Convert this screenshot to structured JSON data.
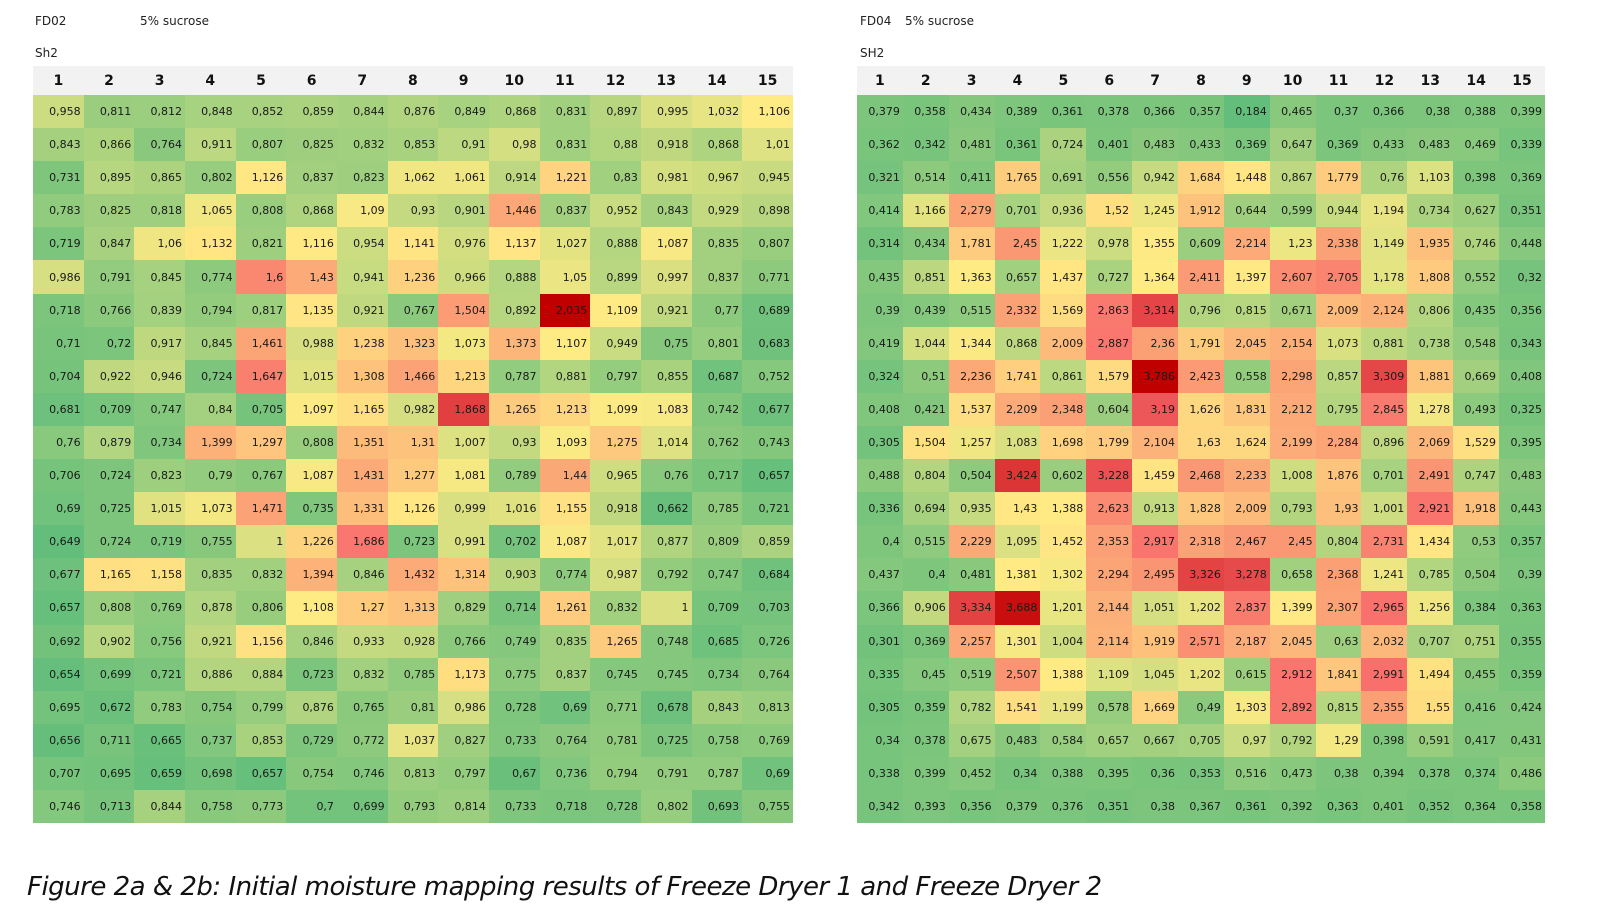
{
  "caption": "Figure 2a & 2b: Initial moisture mapping results of Freeze Dryer 1 and Freeze Dryer 2",
  "colors": {
    "low": "#63be7b",
    "mid": "#ffeb84",
    "high": "#f8696b",
    "peak": "#c00000"
  },
  "chart_data": [
    {
      "type": "heatmap",
      "label": "FD02",
      "formulation": "5% sucrose",
      "shelf": "Sh2",
      "columns": [
        "1",
        "2",
        "3",
        "4",
        "5",
        "6",
        "7",
        "8",
        "9",
        "10",
        "11",
        "12",
        "13",
        "14",
        "15"
      ],
      "color_range": [
        0.649,
        2.035
      ],
      "values": [
        [
          "0,958",
          "0,811",
          "0,812",
          "0,848",
          "0,852",
          "0,859",
          "0,844",
          "0,876",
          "0,849",
          "0,868",
          "0,831",
          "0,897",
          "0,995",
          "1,032",
          "1,106"
        ],
        [
          "0,843",
          "0,866",
          "0,764",
          "0,911",
          "0,807",
          "0,825",
          "0,832",
          "0,853",
          "0,91",
          "0,98",
          "0,831",
          "0,88",
          "0,918",
          "0,868",
          "1,01"
        ],
        [
          "0,731",
          "0,895",
          "0,865",
          "0,802",
          "1,126",
          "0,837",
          "0,823",
          "1,062",
          "1,061",
          "0,914",
          "1,221",
          "0,83",
          "0,981",
          "0,967",
          "0,945"
        ],
        [
          "0,783",
          "0,825",
          "0,818",
          "1,065",
          "0,808",
          "0,868",
          "1,09",
          "0,93",
          "0,901",
          "1,446",
          "0,837",
          "0,952",
          "0,843",
          "0,929",
          "0,898"
        ],
        [
          "0,719",
          "0,847",
          "1,06",
          "1,132",
          "0,821",
          "1,116",
          "0,954",
          "1,141",
          "0,976",
          "1,137",
          "1,027",
          "0,888",
          "1,087",
          "0,835",
          "0,807"
        ],
        [
          "0,986",
          "0,791",
          "0,845",
          "0,774",
          "1,6",
          "1,43",
          "0,941",
          "1,236",
          "0,966",
          "0,888",
          "1,05",
          "0,899",
          "0,997",
          "0,837",
          "0,771"
        ],
        [
          "0,718",
          "0,766",
          "0,839",
          "0,794",
          "0,817",
          "1,135",
          "0,921",
          "0,767",
          "1,504",
          "0,892",
          "2,035",
          "1,109",
          "0,921",
          "0,77",
          "0,689"
        ],
        [
          "0,71",
          "0,72",
          "0,917",
          "0,845",
          "1,461",
          "0,988",
          "1,238",
          "1,323",
          "1,073",
          "1,373",
          "1,107",
          "0,949",
          "0,75",
          "0,801",
          "0,683"
        ],
        [
          "0,704",
          "0,922",
          "0,946",
          "0,724",
          "1,647",
          "1,015",
          "1,308",
          "1,466",
          "1,213",
          "0,787",
          "0,881",
          "0,797",
          "0,855",
          "0,687",
          "0,752"
        ],
        [
          "0,681",
          "0,709",
          "0,747",
          "0,84",
          "0,705",
          "1,097",
          "1,165",
          "0,982",
          "1,868",
          "1,265",
          "1,213",
          "1,099",
          "1,083",
          "0,742",
          "0,677"
        ],
        [
          "0,76",
          "0,879",
          "0,734",
          "1,399",
          "1,297",
          "0,808",
          "1,351",
          "1,31",
          "1,007",
          "0,93",
          "1,093",
          "1,275",
          "1,014",
          "0,762",
          "0,743"
        ],
        [
          "0,706",
          "0,724",
          "0,823",
          "0,79",
          "0,767",
          "1,087",
          "1,431",
          "1,277",
          "1,081",
          "0,789",
          "1,44",
          "0,965",
          "0,76",
          "0,717",
          "0,657"
        ],
        [
          "0,69",
          "0,725",
          "1,015",
          "1,073",
          "1,471",
          "0,735",
          "1,331",
          "1,126",
          "0,999",
          "1,016",
          "1,155",
          "0,918",
          "0,662",
          "0,785",
          "0,721"
        ],
        [
          "0,649",
          "0,724",
          "0,719",
          "0,755",
          "1",
          "1,226",
          "1,686",
          "0,723",
          "0,991",
          "0,702",
          "1,087",
          "1,017",
          "0,877",
          "0,809",
          "0,859"
        ],
        [
          "0,677",
          "1,165",
          "1,158",
          "0,835",
          "0,832",
          "1,394",
          "0,846",
          "1,432",
          "1,314",
          "0,903",
          "0,774",
          "0,987",
          "0,792",
          "0,747",
          "0,684"
        ],
        [
          "0,657",
          "0,808",
          "0,769",
          "0,878",
          "0,806",
          "1,108",
          "1,27",
          "1,313",
          "0,829",
          "0,714",
          "1,261",
          "0,832",
          "1",
          "0,709",
          "0,703"
        ],
        [
          "0,692",
          "0,902",
          "0,756",
          "0,921",
          "1,156",
          "0,846",
          "0,933",
          "0,928",
          "0,766",
          "0,749",
          "0,835",
          "1,265",
          "0,748",
          "0,685",
          "0,726"
        ],
        [
          "0,654",
          "0,699",
          "0,721",
          "0,886",
          "0,884",
          "0,723",
          "0,832",
          "0,785",
          "1,173",
          "0,775",
          "0,837",
          "0,745",
          "0,745",
          "0,734",
          "0,764"
        ],
        [
          "0,695",
          "0,672",
          "0,783",
          "0,754",
          "0,799",
          "0,876",
          "0,765",
          "0,81",
          "0,986",
          "0,728",
          "0,69",
          "0,771",
          "0,678",
          "0,843",
          "0,813"
        ],
        [
          "0,656",
          "0,711",
          "0,665",
          "0,737",
          "0,853",
          "0,729",
          "0,772",
          "1,037",
          "0,827",
          "0,733",
          "0,764",
          "0,781",
          "0,725",
          "0,758",
          "0,769"
        ],
        [
          "0,707",
          "0,695",
          "0,659",
          "0,698",
          "0,657",
          "0,754",
          "0,746",
          "0,813",
          "0,797",
          "0,67",
          "0,736",
          "0,794",
          "0,791",
          "0,787",
          "0,69"
        ],
        [
          "0,746",
          "0,713",
          "0,844",
          "0,758",
          "0,773",
          "0,7",
          "0,699",
          "0,793",
          "0,814",
          "0,733",
          "0,718",
          "0,728",
          "0,802",
          "0,693",
          "0,755"
        ]
      ]
    },
    {
      "type": "heatmap",
      "label": "FD04",
      "formulation": "5% sucrose",
      "shelf": "SH2",
      "columns": [
        "1",
        "2",
        "3",
        "4",
        "5",
        "6",
        "7",
        "8",
        "9",
        "10",
        "11",
        "12",
        "13",
        "14",
        "15"
      ],
      "color_range": [
        0.184,
        3.786
      ],
      "values": [
        [
          "0,379",
          "0,358",
          "0,434",
          "0,389",
          "0,361",
          "0,378",
          "0,366",
          "0,357",
          "0,184",
          "0,465",
          "0,37",
          "0,366",
          "0,38",
          "0,388",
          "0,399"
        ],
        [
          "0,362",
          "0,342",
          "0,481",
          "0,361",
          "0,724",
          "0,401",
          "0,483",
          "0,433",
          "0,369",
          "0,647",
          "0,369",
          "0,433",
          "0,483",
          "0,469",
          "0,339"
        ],
        [
          "0,321",
          "0,514",
          "0,411",
          "1,765",
          "0,691",
          "0,556",
          "0,942",
          "1,684",
          "1,448",
          "0,867",
          "1,779",
          "0,76",
          "1,103",
          "0,398",
          "0,369"
        ],
        [
          "0,414",
          "1,166",
          "2,279",
          "0,701",
          "0,936",
          "1,52",
          "1,245",
          "1,912",
          "0,644",
          "0,599",
          "0,944",
          "1,194",
          "0,734",
          "0,627",
          "0,351"
        ],
        [
          "0,314",
          "0,434",
          "1,781",
          "2,45",
          "1,222",
          "0,978",
          "1,355",
          "0,609",
          "2,214",
          "1,23",
          "2,338",
          "1,149",
          "1,935",
          "0,746",
          "0,448"
        ],
        [
          "0,435",
          "0,851",
          "1,363",
          "0,657",
          "1,437",
          "0,727",
          "1,364",
          "2,411",
          "1,397",
          "2,607",
          "2,705",
          "1,178",
          "1,808",
          "0,552",
          "0,32"
        ],
        [
          "0,39",
          "0,439",
          "0,515",
          "2,332",
          "1,569",
          "2,863",
          "3,314",
          "0,796",
          "0,815",
          "0,671",
          "2,009",
          "2,124",
          "0,806",
          "0,435",
          "0,356"
        ],
        [
          "0,419",
          "1,044",
          "1,344",
          "0,868",
          "2,009",
          "2,887",
          "2,36",
          "1,791",
          "2,045",
          "2,154",
          "1,073",
          "0,881",
          "0,738",
          "0,548",
          "0,343"
        ],
        [
          "0,324",
          "0,51",
          "2,236",
          "1,741",
          "0,861",
          "1,579",
          "3,786",
          "2,423",
          "0,558",
          "2,298",
          "0,857",
          "3,309",
          "1,881",
          "0,669",
          "0,408"
        ],
        [
          "0,408",
          "0,421",
          "1,537",
          "2,209",
          "2,348",
          "0,604",
          "3,19",
          "1,626",
          "1,831",
          "2,212",
          "0,795",
          "2,845",
          "1,278",
          "0,493",
          "0,325"
        ],
        [
          "0,305",
          "1,504",
          "1,257",
          "1,083",
          "1,698",
          "1,799",
          "2,104",
          "1,63",
          "1,624",
          "2,199",
          "2,284",
          "0,896",
          "2,069",
          "1,529",
          "0,395"
        ],
        [
          "0,488",
          "0,804",
          "0,504",
          "3,424",
          "0,602",
          "3,228",
          "1,459",
          "2,468",
          "2,233",
          "1,008",
          "1,876",
          "0,701",
          "2,491",
          "0,747",
          "0,483"
        ],
        [
          "0,336",
          "0,694",
          "0,935",
          "1,43",
          "1,388",
          "2,623",
          "0,913",
          "1,828",
          "2,009",
          "0,793",
          "1,93",
          "1,001",
          "2,921",
          "1,918",
          "0,443"
        ],
        [
          "0,4",
          "0,515",
          "2,229",
          "1,095",
          "1,452",
          "2,353",
          "2,917",
          "2,318",
          "2,467",
          "2,45",
          "0,804",
          "2,731",
          "1,434",
          "0,53",
          "0,357"
        ],
        [
          "0,437",
          "0,4",
          "0,481",
          "1,381",
          "1,302",
          "2,294",
          "2,495",
          "3,326",
          "3,278",
          "0,658",
          "2,368",
          "1,241",
          "0,785",
          "0,504",
          "0,39"
        ],
        [
          "0,366",
          "0,906",
          "3,334",
          "3,688",
          "1,201",
          "2,144",
          "1,051",
          "1,202",
          "2,837",
          "1,399",
          "2,307",
          "2,965",
          "1,256",
          "0,384",
          "0,363"
        ],
        [
          "0,301",
          "0,369",
          "2,257",
          "1,301",
          "1,004",
          "2,114",
          "1,919",
          "2,571",
          "2,187",
          "2,045",
          "0,63",
          "2,032",
          "0,707",
          "0,751",
          "0,355"
        ],
        [
          "0,335",
          "0,45",
          "0,519",
          "2,507",
          "1,388",
          "1,109",
          "1,045",
          "1,202",
          "0,615",
          "2,912",
          "1,841",
          "2,991",
          "1,494",
          "0,455",
          "0,359"
        ],
        [
          "0,305",
          "0,359",
          "0,782",
          "1,541",
          "1,199",
          "0,578",
          "1,669",
          "0,49",
          "1,303",
          "2,892",
          "0,815",
          "2,355",
          "1,55",
          "0,416",
          "0,424"
        ],
        [
          "0,34",
          "0,378",
          "0,675",
          "0,483",
          "0,584",
          "0,657",
          "0,667",
          "0,705",
          "0,97",
          "0,792",
          "1,29",
          "0,398",
          "0,591",
          "0,417",
          "0,431"
        ],
        [
          "0,338",
          "0,399",
          "0,452",
          "0,34",
          "0,388",
          "0,395",
          "0,36",
          "0,353",
          "0,516",
          "0,473",
          "0,38",
          "0,394",
          "0,378",
          "0,374",
          "0,486"
        ],
        [
          "0,342",
          "0,393",
          "0,356",
          "0,379",
          "0,376",
          "0,351",
          "0,38",
          "0,367",
          "0,361",
          "0,392",
          "0,363",
          "0,401",
          "0,352",
          "0,364",
          "0,358"
        ]
      ]
    }
  ]
}
